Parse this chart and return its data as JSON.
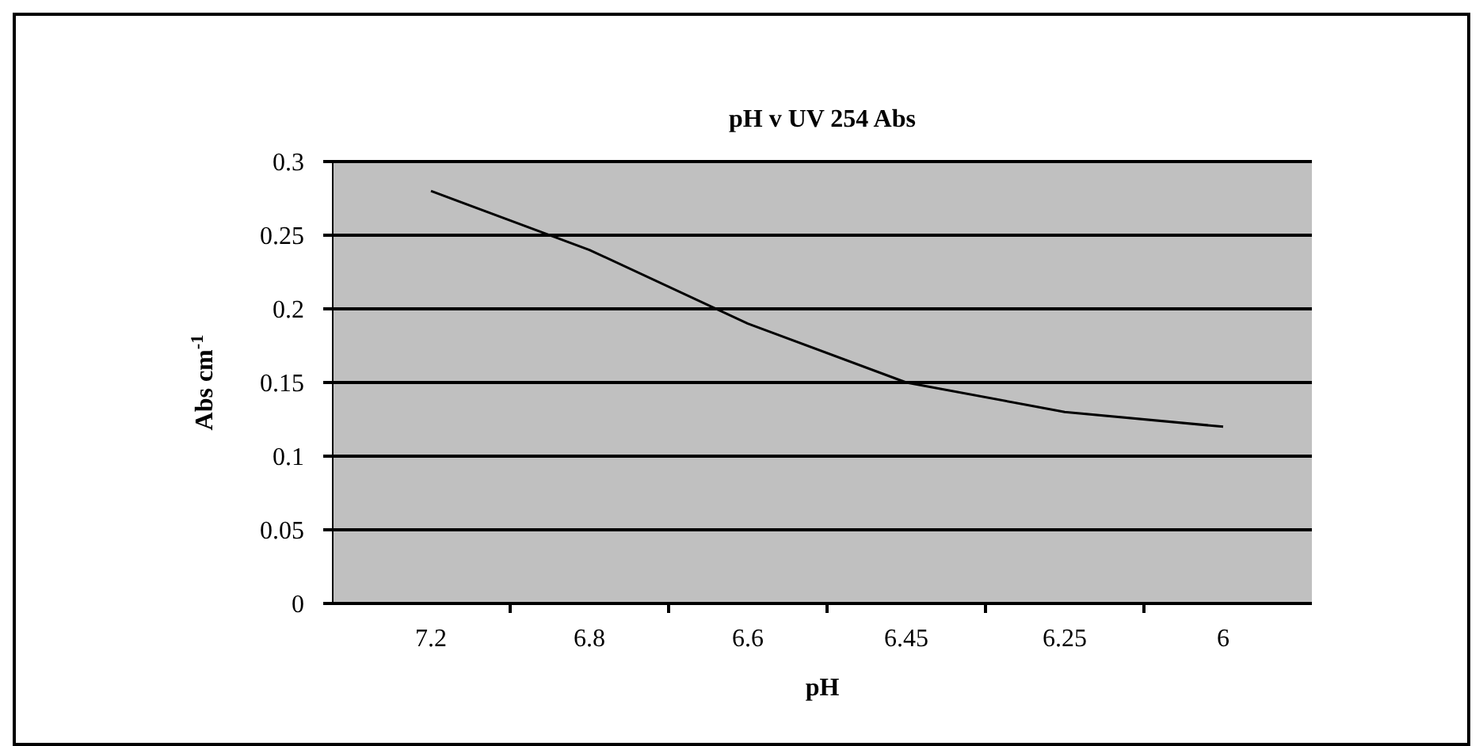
{
  "chart_data": {
    "type": "line",
    "title": "pH v UV 254 Abs",
    "xlabel": "pH",
    "ylabel": "Abs cm$^{-1}$",
    "categories": [
      "7.2",
      "6.8",
      "6.6",
      "6.45",
      "6.25",
      "6"
    ],
    "series": [
      {
        "color": "#000000",
        "values": [
          0.28,
          0.24,
          0.19,
          0.15,
          0.13,
          0.12
        ]
      }
    ],
    "ylim": [
      0,
      0.3
    ],
    "yticks": [
      0,
      0.05,
      0.1,
      0.15,
      0.2,
      0.25,
      0.3
    ],
    "grid": "y",
    "marker": "none",
    "line_style": "solid"
  }
}
